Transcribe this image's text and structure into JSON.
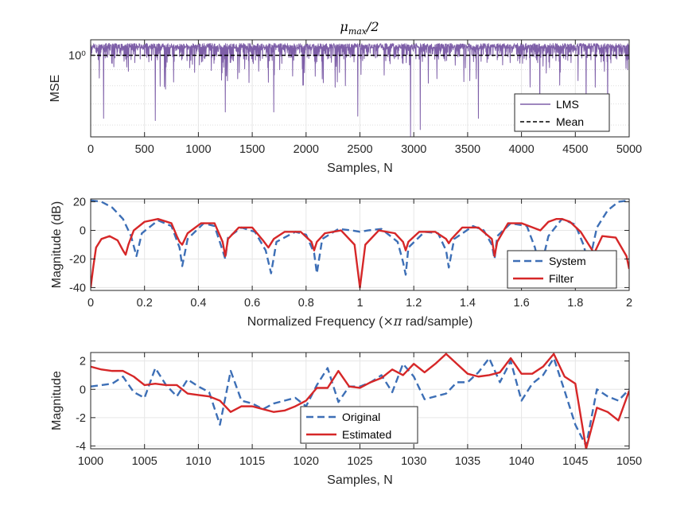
{
  "chart_data": [
    {
      "id": "mse",
      "type": "line",
      "title": "μmax/2",
      "xlabel": "Samples, N",
      "ylabel": "MSE",
      "xlim": [
        0,
        5000
      ],
      "ylim": [
        0.55,
        1.12
      ],
      "yscale": "log",
      "grid": true,
      "xticks": [
        0,
        500,
        1000,
        1500,
        2000,
        2500,
        3000,
        3500,
        4000,
        4500,
        5000
      ],
      "xtick_labels": [
        "0",
        "500",
        "1000",
        "1500",
        "2000",
        "2500",
        "3000",
        "3500",
        "4000",
        "4500",
        "5000"
      ],
      "yticks": [
        1
      ],
      "ytick_labels": [
        "10⁰"
      ],
      "legend_position": "bottom-right",
      "series": [
        {
          "name": "LMS",
          "color": "#7e5fa8",
          "style": "solid",
          "noise": {
            "n": 5000,
            "base": 0.94,
            "top": 1.09,
            "dips": [
              [
                120,
                0.63
              ],
              [
                600,
                0.62
              ],
              [
                1250,
                0.66
              ],
              [
                1700,
                0.66
              ],
              [
                2480,
                0.64
              ],
              [
                2970,
                0.55
              ],
              [
                3060,
                0.58
              ],
              [
                3600,
                0.63
              ],
              [
                4170,
                0.66
              ],
              [
                4600,
                0.68
              ],
              [
                4800,
                0.66
              ]
            ]
          }
        },
        {
          "name": "Mean",
          "color": "#000000",
          "style": "dashed",
          "x": [
            0,
            5000
          ],
          "y": [
            1.0,
            1.0
          ]
        }
      ]
    },
    {
      "id": "freq",
      "type": "line",
      "xlabel": "Normalized Frequency (×π rad/sample)",
      "ylabel": "Magnitude (dB)",
      "xlim": [
        0,
        2
      ],
      "ylim": [
        -42,
        22
      ],
      "grid": true,
      "xticks": [
        0,
        0.2,
        0.4,
        0.6,
        0.8,
        1,
        1.2,
        1.4,
        1.6,
        1.8,
        2
      ],
      "xtick_labels": [
        "0",
        "0.2",
        "0.4",
        "0.6",
        "0.8",
        "1",
        "1.2",
        "1.4",
        "1.6",
        "1.8",
        "2"
      ],
      "yticks": [
        -40,
        -20,
        0,
        20
      ],
      "ytick_labels": [
        "-40",
        "-20",
        "0",
        "20"
      ],
      "legend_position": "bottom-right",
      "series": [
        {
          "name": "System",
          "color": "#3d6fb6",
          "style": "dashed",
          "x": [
            0,
            0.04,
            0.08,
            0.12,
            0.15,
            0.17,
            0.19,
            0.25,
            0.3,
            0.33,
            0.34,
            0.36,
            0.42,
            0.46,
            0.49,
            0.5,
            0.51,
            0.56,
            0.61,
            0.65,
            0.67,
            0.69,
            0.76,
            0.8,
            0.83,
            0.84,
            0.86,
            0.92,
            0.97,
            1.0,
            1.03,
            1.08,
            1.14,
            1.16,
            1.17,
            1.18,
            1.24,
            1.29,
            1.32,
            1.33,
            1.35,
            1.42,
            1.46,
            1.49,
            1.5,
            1.51,
            1.56,
            1.62,
            1.65,
            1.67,
            1.7,
            1.75,
            1.8,
            1.83,
            1.85,
            1.88,
            1.92,
            1.96,
            2.0
          ],
          "y": [
            21,
            20,
            16,
            8,
            -4,
            -18,
            -2,
            7,
            3,
            -12,
            -25,
            -6,
            5,
            3,
            -14,
            -20,
            -5,
            2,
            -1,
            -14,
            -30,
            -8,
            -1,
            -3,
            -16,
            -30,
            -6,
            1,
            0,
            -1,
            0,
            1,
            -8,
            -22,
            -31,
            -12,
            -1,
            -2,
            -14,
            -26,
            -6,
            3,
            0,
            -10,
            -20,
            -4,
            5,
            3,
            -12,
            -28,
            -4,
            8,
            4,
            -10,
            -24,
            2,
            14,
            20,
            21
          ]
        },
        {
          "name": "Filter",
          "color": "#d62728",
          "style": "solid",
          "x": [
            0,
            0.01,
            0.02,
            0.04,
            0.07,
            0.1,
            0.12,
            0.13,
            0.14,
            0.16,
            0.2,
            0.25,
            0.3,
            0.32,
            0.33,
            0.34,
            0.36,
            0.41,
            0.46,
            0.49,
            0.5,
            0.51,
            0.55,
            0.6,
            0.64,
            0.66,
            0.67,
            0.68,
            0.72,
            0.78,
            0.82,
            0.83,
            0.84,
            0.87,
            0.93,
            0.98,
            1.0,
            1.02,
            1.07,
            1.13,
            1.16,
            1.17,
            1.18,
            1.22,
            1.28,
            1.32,
            1.33,
            1.34,
            1.38,
            1.44,
            1.49,
            1.5,
            1.51,
            1.55,
            1.6,
            1.67,
            1.7,
            1.73,
            1.75,
            1.78,
            1.82,
            1.85,
            1.87,
            1.9,
            1.95,
            1.99,
            2.0
          ],
          "y": [
            -40,
            -25,
            -12,
            -6,
            -4,
            -7,
            -14,
            -17,
            -10,
            0,
            6,
            8,
            5,
            -4,
            -8,
            -10,
            -2,
            5,
            5,
            -8,
            -18,
            -6,
            2,
            2,
            -7,
            -12,
            -9,
            -6,
            -1,
            -1,
            -8,
            -14,
            -8,
            -2,
            0,
            -10,
            -40,
            -10,
            0,
            -2,
            -8,
            -14,
            -8,
            -1,
            -1,
            -6,
            -9,
            -6,
            2,
            2,
            -6,
            -18,
            -8,
            5,
            5,
            0,
            6,
            8,
            8,
            6,
            -1,
            -10,
            -16,
            -4,
            -5,
            -18,
            -27
          ]
        }
      ]
    },
    {
      "id": "signal",
      "type": "line",
      "xlabel": "Samples, N",
      "ylabel": "Magnitude",
      "xlim": [
        1000,
        1050
      ],
      "ylim": [
        -4.2,
        2.6
      ],
      "grid": true,
      "xticks": [
        1000,
        1005,
        1010,
        1015,
        1020,
        1025,
        1030,
        1035,
        1040,
        1045,
        1050
      ],
      "xtick_labels": [
        "1000",
        "1005",
        "1010",
        "1015",
        "1020",
        "1025",
        "1030",
        "1035",
        "1040",
        "1045",
        "1050"
      ],
      "yticks": [
        -4,
        -2,
        0,
        2
      ],
      "ytick_labels": [
        "-4",
        "-2",
        "0",
        "2"
      ],
      "legend_position": "bottom-center",
      "series": [
        {
          "name": "Original",
          "color": "#3d6fb6",
          "style": "dashed",
          "x": [
            1000,
            1001,
            1002,
            1003,
            1004,
            1005,
            1006,
            1007,
            1008,
            1009,
            1010,
            1011,
            1012,
            1013,
            1014,
            1015,
            1016,
            1017,
            1018,
            1019,
            1020,
            1021,
            1022,
            1023,
            1024,
            1025,
            1026,
            1027,
            1028,
            1029,
            1030,
            1031,
            1032,
            1033,
            1034,
            1035,
            1036,
            1037,
            1038,
            1039,
            1040,
            1041,
            1042,
            1043,
            1044,
            1045,
            1046,
            1047,
            1048,
            1049,
            1050
          ],
          "y": [
            0.2,
            0.3,
            0.4,
            0.9,
            -0.2,
            -0.6,
            1.5,
            0.3,
            -0.5,
            0.7,
            0.2,
            -0.2,
            -2.5,
            1.3,
            -0.8,
            -1.0,
            -1.4,
            -1.0,
            -0.8,
            -0.6,
            -1.2,
            0.3,
            1.5,
            -0.9,
            0.2,
            0.2,
            0.5,
            1.0,
            -0.2,
            1.8,
            0.9,
            -0.7,
            -0.5,
            -0.3,
            0.5,
            0.5,
            1.2,
            2.2,
            0.5,
            2.0,
            -0.8,
            0.4,
            1.0,
            2.2,
            -0.1,
            -2.5,
            -4.0,
            0.0,
            -0.5,
            -0.8,
            0.0
          ]
        },
        {
          "name": "Estimated",
          "color": "#d62728",
          "style": "solid",
          "x": [
            1000,
            1001,
            1002,
            1003,
            1004,
            1005,
            1006,
            1007,
            1008,
            1009,
            1010,
            1011,
            1012,
            1013,
            1014,
            1015,
            1016,
            1017,
            1018,
            1019,
            1020,
            1021,
            1022,
            1023,
            1024,
            1025,
            1026,
            1027,
            1028,
            1029,
            1030,
            1031,
            1032,
            1033,
            1034,
            1035,
            1036,
            1037,
            1038,
            1039,
            1040,
            1041,
            1042,
            1043,
            1044,
            1045,
            1046,
            1047,
            1048,
            1049,
            1050
          ],
          "y": [
            1.6,
            1.4,
            1.3,
            1.3,
            0.9,
            0.3,
            0.4,
            0.3,
            0.3,
            -0.3,
            -0.4,
            -0.5,
            -0.8,
            -1.6,
            -1.2,
            -1.2,
            -1.4,
            -1.6,
            -1.5,
            -1.2,
            -0.8,
            0.1,
            0.1,
            1.3,
            0.2,
            0.1,
            0.5,
            0.8,
            1.4,
            1.0,
            1.8,
            1.2,
            1.8,
            2.5,
            1.8,
            1.1,
            0.9,
            1.0,
            1.2,
            2.2,
            1.1,
            1.1,
            1.6,
            2.5,
            0.9,
            0.4,
            -4.2,
            -1.3,
            -1.6,
            -2.2,
            -0.1
          ]
        }
      ]
    }
  ]
}
